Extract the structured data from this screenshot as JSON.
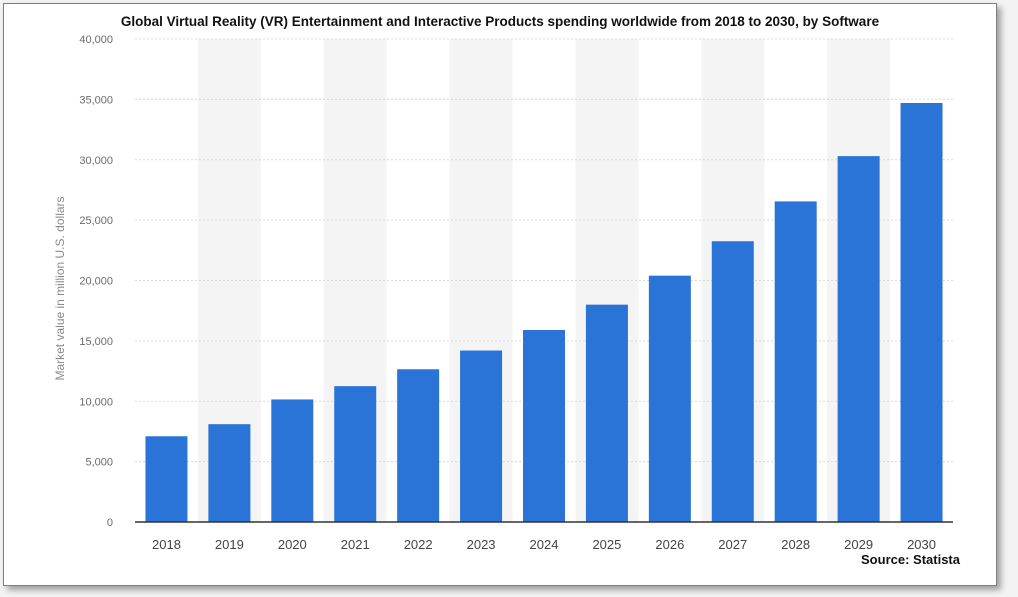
{
  "title": "Global Virtual Reality (VR) Entertainment and Interactive Products spending worldwide from 2018 to 2030, by Software",
  "source": "Source: Statista",
  "colors": {
    "bar": "#2a74d8",
    "grid": "#d9d9d9",
    "band": "#f4f4f4"
  },
  "chart_data": {
    "type": "bar",
    "title": "Global Virtual Reality (VR) Entertainment and Interactive Products spending worldwide from 2018 to 2030, by Software",
    "xlabel": "",
    "ylabel": "Market value in million U.S. dollars",
    "categories": [
      "2018",
      "2019",
      "2020",
      "2021",
      "2022",
      "2023",
      "2024",
      "2025",
      "2026",
      "2027",
      "2028",
      "2029",
      "2030"
    ],
    "values": [
      7100,
      8100,
      10150,
      11250,
      12650,
      14200,
      15900,
      18000,
      20400,
      23250,
      26550,
      30300,
      34700
    ],
    "ylim": [
      0,
      40000
    ],
    "yticks": [
      0,
      5000,
      10000,
      15000,
      20000,
      25000,
      30000,
      35000,
      40000
    ],
    "ytick_labels": [
      "0",
      "5,000",
      "10,000",
      "15,000",
      "20,000",
      "25,000",
      "30,000",
      "35,000",
      "40,000"
    ],
    "grid": true
  }
}
